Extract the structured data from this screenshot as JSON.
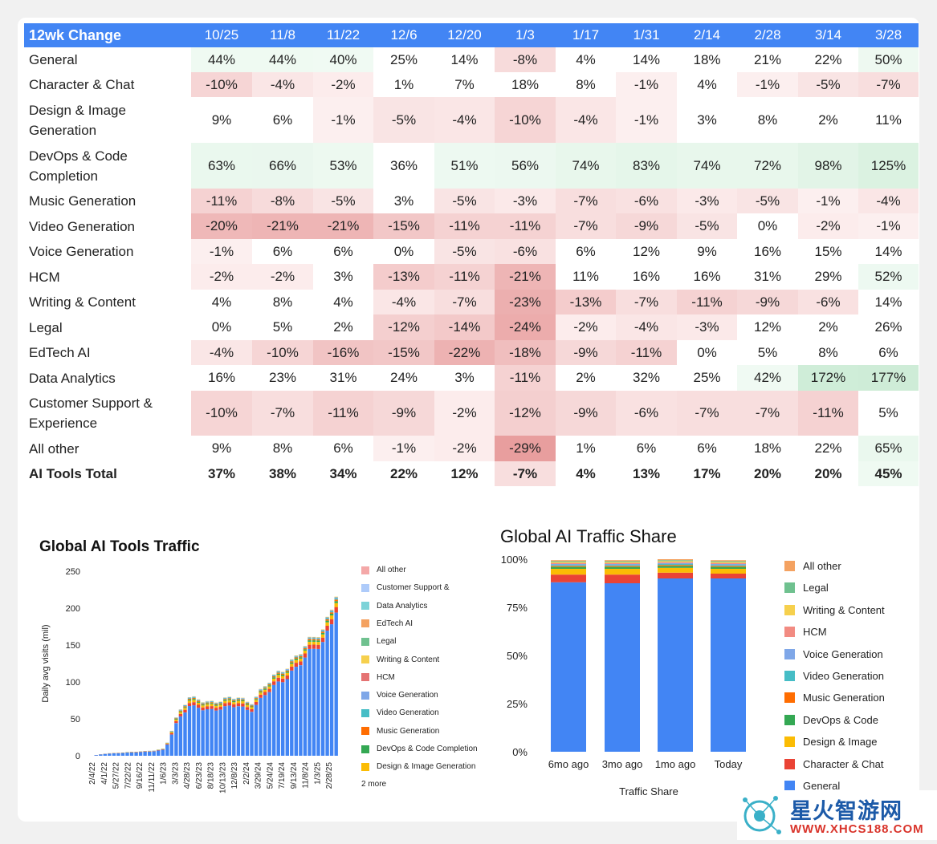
{
  "table": {
    "header_label": "12wk Change",
    "columns": [
      "10/25",
      "11/8",
      "11/22",
      "12/6",
      "12/20",
      "1/3",
      "1/17",
      "1/31",
      "2/14",
      "2/28",
      "3/14",
      "3/28"
    ],
    "rows": [
      {
        "name": "General",
        "values": [
          "44%",
          "44%",
          "40%",
          "25%",
          "14%",
          "-8%",
          "4%",
          "14%",
          "18%",
          "21%",
          "22%",
          "50%"
        ],
        "nums": [
          44,
          44,
          40,
          25,
          14,
          -8,
          4,
          14,
          18,
          21,
          22,
          50
        ],
        "h": 31
      },
      {
        "name": "Character & Chat",
        "values": [
          "-10%",
          "-4%",
          "-2%",
          "1%",
          "7%",
          "18%",
          "8%",
          "-1%",
          "4%",
          "-1%",
          "-5%",
          "-7%"
        ],
        "nums": [
          -10,
          -4,
          -2,
          1,
          7,
          18,
          8,
          -1,
          4,
          -1,
          -5,
          -7
        ],
        "h": 31
      },
      {
        "name": "Design & Image Generation",
        "values": [
          "9%",
          "6%",
          "-1%",
          "-5%",
          "-4%",
          "-10%",
          "-4%",
          "-1%",
          "3%",
          "8%",
          "2%",
          "11%"
        ],
        "nums": [
          9,
          6,
          -1,
          -5,
          -4,
          -10,
          -4,
          -1,
          3,
          8,
          2,
          11
        ],
        "h": 57
      },
      {
        "name": "DevOps & Code Completion",
        "values": [
          "63%",
          "66%",
          "53%",
          "36%",
          "51%",
          "56%",
          "74%",
          "83%",
          "74%",
          "72%",
          "98%",
          "125%"
        ],
        "nums": [
          63,
          66,
          53,
          36,
          51,
          56,
          74,
          83,
          74,
          72,
          98,
          125
        ],
        "h": 57
      },
      {
        "name": "Music Generation",
        "values": [
          "-11%",
          "-8%",
          "-5%",
          "3%",
          "-5%",
          "-3%",
          "-7%",
          "-6%",
          "-3%",
          "-5%",
          "-1%",
          "-4%"
        ],
        "nums": [
          -11,
          -8,
          -5,
          3,
          -5,
          -3,
          -7,
          -6,
          -3,
          -5,
          -1,
          -4
        ],
        "h": 31
      },
      {
        "name": "Video Generation",
        "values": [
          "-20%",
          "-21%",
          "-21%",
          "-15%",
          "-11%",
          "-11%",
          "-7%",
          "-9%",
          "-5%",
          "0%",
          "-2%",
          "-1%"
        ],
        "nums": [
          -20,
          -21,
          -21,
          -15,
          -11,
          -11,
          -7,
          -9,
          -5,
          0,
          -2,
          -1
        ],
        "h": 32
      },
      {
        "name": "Voice Generation",
        "values": [
          "-1%",
          "6%",
          "6%",
          "0%",
          "-5%",
          "-6%",
          "6%",
          "12%",
          "9%",
          "16%",
          "15%",
          "14%"
        ],
        "nums": [
          -1,
          6,
          6,
          0,
          -5,
          -6,
          6,
          12,
          9,
          16,
          15,
          14
        ],
        "h": 31
      },
      {
        "name": "HCM",
        "values": [
          "-2%",
          "-2%",
          "3%",
          "-13%",
          "-11%",
          "-21%",
          "11%",
          "16%",
          "16%",
          "31%",
          "29%",
          "52%"
        ],
        "nums": [
          -2,
          -2,
          3,
          -13,
          -11,
          -21,
          11,
          16,
          16,
          31,
          29,
          52
        ],
        "h": 32
      },
      {
        "name": "Writing & Content",
        "values": [
          "4%",
          "8%",
          "4%",
          "-4%",
          "-7%",
          "-23%",
          "-13%",
          "-7%",
          "-11%",
          "-9%",
          "-6%",
          "14%"
        ],
        "nums": [
          4,
          8,
          4,
          -4,
          -7,
          -23,
          -13,
          -7,
          -11,
          -9,
          -6,
          14
        ],
        "h": 31
      },
      {
        "name": "Legal",
        "values": [
          "0%",
          "5%",
          "2%",
          "-12%",
          "-14%",
          "-24%",
          "-2%",
          "-4%",
          "-3%",
          "12%",
          "2%",
          "26%"
        ],
        "nums": [
          0,
          5,
          2,
          -12,
          -14,
          -24,
          -2,
          -4,
          -3,
          12,
          2,
          26
        ],
        "h": 32
      },
      {
        "name": "EdTech AI",
        "values": [
          "-4%",
          "-10%",
          "-16%",
          "-15%",
          "-22%",
          "-18%",
          "-9%",
          "-11%",
          "0%",
          "5%",
          "8%",
          "6%"
        ],
        "nums": [
          -4,
          -10,
          -16,
          -15,
          -22,
          -18,
          -9,
          -11,
          0,
          5,
          8,
          6
        ],
        "h": 31
      },
      {
        "name": "Data Analytics",
        "values": [
          "16%",
          "23%",
          "31%",
          "24%",
          "3%",
          "-11%",
          "2%",
          "32%",
          "25%",
          "42%",
          "172%",
          "177%"
        ],
        "nums": [
          16,
          23,
          31,
          24,
          3,
          -11,
          2,
          32,
          25,
          42,
          172,
          177
        ],
        "h": 32
      },
      {
        "name": "Customer Support & Experience",
        "values": [
          "-10%",
          "-7%",
          "-11%",
          "-9%",
          "-2%",
          "-12%",
          "-9%",
          "-6%",
          "-7%",
          "-7%",
          "-11%",
          "5%"
        ],
        "nums": [
          -10,
          -7,
          -11,
          -9,
          -2,
          -12,
          -9,
          -6,
          -7,
          -7,
          -11,
          5
        ],
        "h": 56
      },
      {
        "name": "All other",
        "values": [
          "9%",
          "8%",
          "6%",
          "-1%",
          "-2%",
          "-29%",
          "1%",
          "6%",
          "6%",
          "18%",
          "22%",
          "65%"
        ],
        "nums": [
          9,
          8,
          6,
          -1,
          -2,
          -29,
          1,
          6,
          6,
          18,
          22,
          65
        ],
        "h": 32
      },
      {
        "name": "AI Tools Total",
        "values": [
          "37%",
          "38%",
          "34%",
          "22%",
          "12%",
          "-7%",
          "4%",
          "13%",
          "17%",
          "20%",
          "20%",
          "45%"
        ],
        "nums": [
          37,
          38,
          34,
          22,
          12,
          -7,
          4,
          13,
          17,
          20,
          20,
          45
        ],
        "h": 31,
        "total": true
      }
    ]
  },
  "left_chart": {
    "title": "Global AI Tools Traffic",
    "ylabel": "Daily avg visits (mil)",
    "legend_more": "2 more",
    "legend": [
      {
        "label": "All other",
        "color": "#f4a8a8"
      },
      {
        "label": "Customer Support &",
        "color": "#aecbfa"
      },
      {
        "label": "Data Analytics",
        "color": "#7dd3d8"
      },
      {
        "label": "EdTech AI",
        "color": "#f4a261"
      },
      {
        "label": "Legal",
        "color": "#6fc18f"
      },
      {
        "label": "Writing & Content",
        "color": "#f6d04d"
      },
      {
        "label": "HCM",
        "color": "#e57373"
      },
      {
        "label": "Voice Generation",
        "color": "#7fa7e8"
      },
      {
        "label": "Video Generation",
        "color": "#46bdc6"
      },
      {
        "label": "Music Generation",
        "color": "#ff6d01"
      },
      {
        "label": "DevOps & Code Completion",
        "color": "#34a853"
      },
      {
        "label": "Design & Image Generation",
        "color": "#fbbc04"
      }
    ]
  },
  "right_chart": {
    "title": "Global AI Traffic Share",
    "xlabel": "Traffic Share",
    "legend": [
      {
        "label": "All other",
        "color": "#f4a261"
      },
      {
        "label": "Legal",
        "color": "#6fc18f"
      },
      {
        "label": "Writing & Content",
        "color": "#f6d04d"
      },
      {
        "label": "HCM",
        "color": "#f28b82"
      },
      {
        "label": "Voice Generation",
        "color": "#7fa7e8"
      },
      {
        "label": "Video Generation",
        "color": "#46bdc6"
      },
      {
        "label": "Music Generation",
        "color": "#ff6d01"
      },
      {
        "label": "DevOps & Code",
        "color": "#34a853"
      },
      {
        "label": "Design & Image",
        "color": "#fbbc04"
      },
      {
        "label": "Character & Chat",
        "color": "#ea4335"
      },
      {
        "label": "General",
        "color": "#4285f4"
      }
    ]
  },
  "chart_data": [
    {
      "type": "area",
      "title": "Global AI Tools Traffic",
      "xlabel": "",
      "ylabel": "Daily avg visits (mil)",
      "ylim": [
        0,
        250
      ],
      "yticks": [
        0,
        50,
        100,
        150,
        200,
        250
      ],
      "x_tick_labels": [
        "2/4/22",
        "4/1/22",
        "5/27/22",
        "7/22/22",
        "9/16/22",
        "11/11/22",
        "1/6/23",
        "3/3/23",
        "4/28/23",
        "6/23/23",
        "8/18/23",
        "10/13/23",
        "12/8/23",
        "2/2/24",
        "3/29/24",
        "5/24/24",
        "7/19/24",
        "9/13/24",
        "11/8/24",
        "1/3/25",
        "2/28/25"
      ],
      "x": [
        "2/4/22",
        "4/1/22",
        "5/27/22",
        "7/22/22",
        "9/16/22",
        "11/11/22",
        "1/6/23",
        "3/3/23",
        "4/28/23",
        "6/23/23",
        "8/18/23",
        "10/13/23",
        "12/8/23",
        "2/2/24",
        "3/29/24",
        "5/24/24",
        "7/19/24",
        "9/13/24",
        "11/8/24",
        "1/3/25",
        "2/28/25"
      ],
      "total": [
        0,
        3,
        4,
        5,
        6,
        7,
        10,
        55,
        80,
        75,
        72,
        78,
        80,
        70,
        92,
        110,
        120,
        140,
        160,
        170,
        220
      ],
      "general_share": [
        0.85,
        0.85,
        0.85,
        0.85,
        0.85,
        0.85,
        0.85,
        0.85,
        0.85,
        0.85,
        0.85,
        0.85,
        0.85,
        0.85,
        0.87,
        0.87,
        0.88,
        0.89,
        0.9,
        0.9,
        0.9
      ],
      "legend_placement": "right"
    },
    {
      "type": "bar",
      "stacked": true,
      "title": "Global AI Traffic Share",
      "xlabel": "Traffic Share",
      "categories": [
        "6mo ago",
        "3mo ago",
        "1mo ago",
        "Today"
      ],
      "yticks": [
        "0%",
        "25%",
        "50%",
        "75%",
        "100%"
      ],
      "ylim": [
        0,
        100
      ],
      "series": [
        {
          "name": "General",
          "values": [
            88,
            87.5,
            90,
            90
          ]
        },
        {
          "name": "Character & Chat",
          "values": [
            4,
            4.5,
            3,
            2.5
          ]
        },
        {
          "name": "Design & Image",
          "values": [
            3,
            3,
            2.5,
            2.5
          ]
        },
        {
          "name": "DevOps & Code",
          "values": [
            1,
            1,
            1,
            1
          ]
        },
        {
          "name": "Music Generation",
          "values": [
            0.5,
            0.5,
            0.5,
            0.5
          ]
        },
        {
          "name": "Video Generation",
          "values": [
            0.5,
            0.5,
            0.5,
            0.5
          ]
        },
        {
          "name": "Voice Generation",
          "values": [
            0.5,
            0.5,
            0.5,
            0.5
          ]
        },
        {
          "name": "HCM",
          "values": [
            0.5,
            0.5,
            0.5,
            0.5
          ]
        },
        {
          "name": "Writing & Content",
          "values": [
            0.5,
            0.5,
            0.5,
            0.5
          ]
        },
        {
          "name": "Legal",
          "values": [
            0.5,
            0.5,
            0.5,
            0.5
          ]
        },
        {
          "name": "All other",
          "values": [
            0.5,
            0.5,
            0.5,
            0.5
          ]
        }
      ],
      "legend_placement": "right"
    }
  ],
  "watermark": {
    "text": "星火智游网",
    "url": "WWW.XHCS188.COM"
  }
}
